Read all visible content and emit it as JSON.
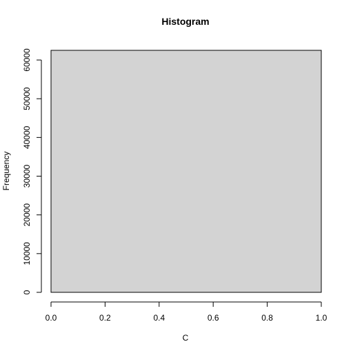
{
  "chart_data": {
    "type": "bar",
    "title": "Histogram",
    "xlabel": "C",
    "ylabel": "Frequency",
    "bins": [
      {
        "start": 0.0,
        "end": 1.0,
        "count": 62500
      }
    ],
    "xlim": [
      0.0,
      1.0
    ],
    "ylim": [
      0,
      62500
    ],
    "x_ticks": [
      0.0,
      0.2,
      0.4,
      0.6,
      0.8,
      1.0
    ],
    "x_tick_labels": [
      "0.0",
      "0.2",
      "0.4",
      "0.6",
      "0.8",
      "1.0"
    ],
    "y_ticks": [
      0,
      10000,
      20000,
      30000,
      40000,
      50000,
      60000
    ],
    "y_tick_labels": [
      "0",
      "10000",
      "20000",
      "30000",
      "40000",
      "50000",
      "60000"
    ],
    "grid": false,
    "colors": {
      "bar_fill": "#d3d3d3",
      "bar_stroke": "#000000"
    }
  }
}
